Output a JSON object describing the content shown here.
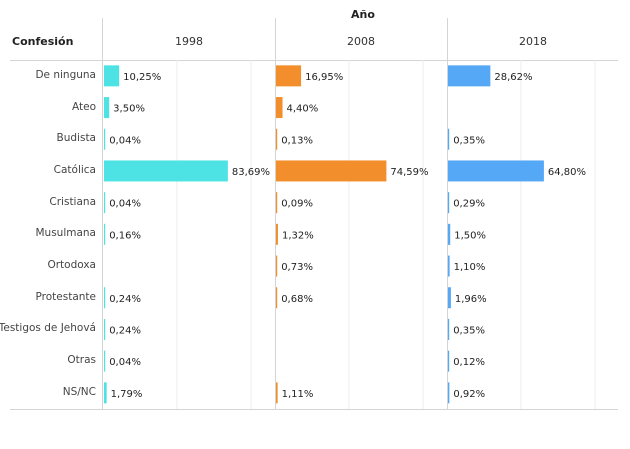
{
  "header": {
    "column_title": "Año",
    "row_title": "Confesión"
  },
  "chart_data": {
    "type": "bar",
    "orientation": "horizontal",
    "categories": [
      "De ninguna",
      "Ateo",
      "Budista",
      "Católica",
      "Cristiana",
      "Musulmana",
      "Ortodoxa",
      "Protestante",
      "Testigos de Jehová",
      "Otras",
      "NS/NC"
    ],
    "series": [
      {
        "name": "1998",
        "color": "#4de3e4",
        "values": [
          10.25,
          3.5,
          0.04,
          83.69,
          0.04,
          0.16,
          null,
          0.24,
          0.24,
          0.04,
          1.79
        ],
        "labels": [
          "10,25%",
          "3,50%",
          "0,04%",
          "83,69%",
          "0,04%",
          "0,16%",
          "",
          "0,24%",
          "0,24%",
          "0,04%",
          "1,79%"
        ]
      },
      {
        "name": "2008",
        "color": "#f28e2b",
        "values": [
          16.95,
          4.4,
          0.13,
          74.59,
          0.09,
          1.32,
          0.73,
          0.68,
          null,
          null,
          1.11
        ],
        "labels": [
          "16,95%",
          "4,40%",
          "0,13%",
          "74,59%",
          "0,09%",
          "1,32%",
          "0,73%",
          "0,68%",
          "",
          "",
          "1,11%"
        ]
      },
      {
        "name": "2018",
        "color": "#55a8f5",
        "values": [
          28.62,
          null,
          0.35,
          64.8,
          0.29,
          1.5,
          1.1,
          1.96,
          0.35,
          0.12,
          0.92
        ],
        "labels": [
          "28,62%",
          "",
          "0,35%",
          "64,80%",
          "0,29%",
          "1,50%",
          "1,10%",
          "1,96%",
          "0,35%",
          "0,12%",
          "0,92%"
        ]
      }
    ],
    "xlim": [
      0,
      100
    ],
    "grid": true
  }
}
